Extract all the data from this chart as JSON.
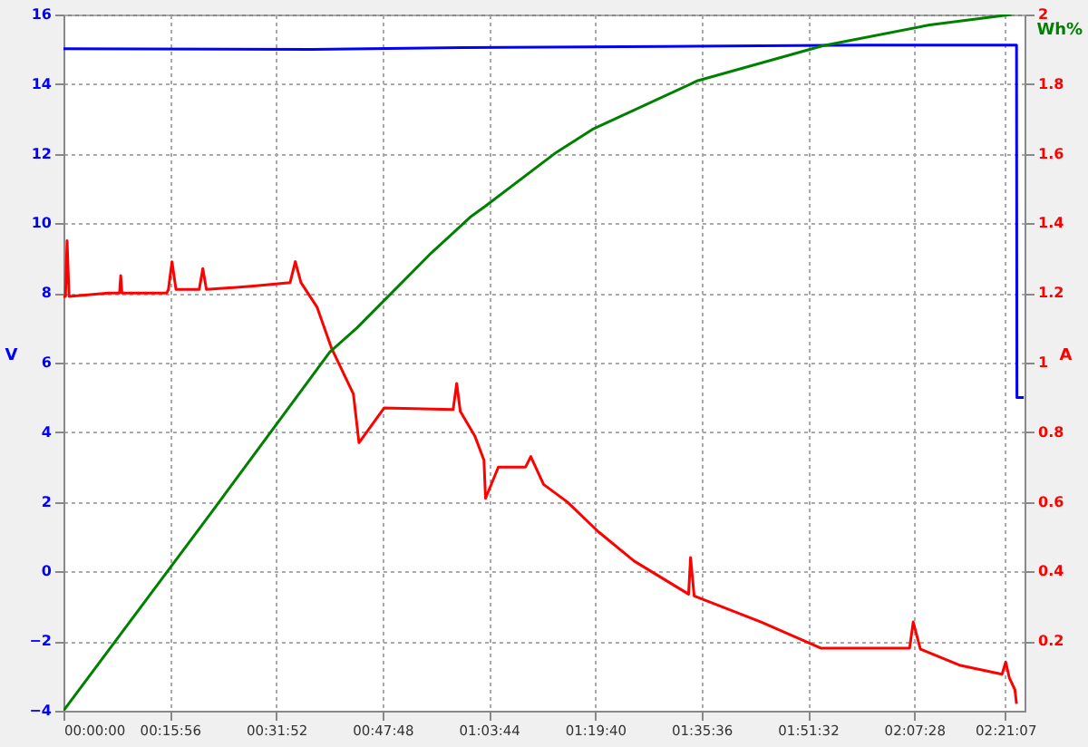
{
  "chart_data": {
    "type": "line",
    "ylabel": "V",
    "y2label": "A",
    "xlim": [
      0,
      2.4
    ],
    "xticks": [
      {
        "value": 0,
        "label": "00:00:00"
      },
      {
        "value": 0.2656,
        "label": "00:15:56"
      },
      {
        "value": 0.5311,
        "label": "00:31:52"
      },
      {
        "value": 0.7967,
        "label": "00:47:48"
      },
      {
        "value": 1.0622,
        "label": "01:03:44"
      },
      {
        "value": 1.3278,
        "label": "01:19:40"
      },
      {
        "value": 1.5933,
        "label": "01:35:36"
      },
      {
        "value": 1.8589,
        "label": "01:51:32"
      },
      {
        "value": 2.1244,
        "label": "02:07:28"
      },
      {
        "value": 2.3519,
        "label": "02:21:07"
      }
    ],
    "ylim": [
      -4,
      16
    ],
    "yticks": [
      -4,
      -2,
      0,
      2,
      4,
      6,
      8,
      10,
      12,
      14,
      16
    ],
    "y2lim": [
      0,
      2
    ],
    "y2ticks": [
      0.2,
      0.4,
      0.6,
      0.8,
      1,
      1.2,
      1.4,
      1.6,
      1.8,
      2
    ],
    "grid": true,
    "series": [
      {
        "color": "#0000ff",
        "x": [
          0,
          0.62,
          1.0,
          1.5,
          2.0,
          2.38,
          2.381,
          2.398
        ],
        "values": [
          15.02,
          15.0,
          15.05,
          15.08,
          15.12,
          15.12,
          5.0,
          5.0
        ]
      },
      {
        "color": "#ff0000",
        "axis": "y2",
        "x": [
          0,
          0.005,
          0.009,
          0.014,
          0.113,
          0.14,
          0.143,
          0.146,
          0.258,
          0.262,
          0.271,
          0.281,
          0.339,
          0.348,
          0.357,
          0.475,
          0.566,
          0.579,
          0.593,
          0.633,
          0.67,
          0.724,
          0.738,
          0.801,
          0.973,
          0.982,
          0.991,
          1.027,
          1.05,
          1.054,
          1.086,
          1.154,
          1.167,
          1.199,
          1.258,
          1.335,
          1.425,
          1.561,
          1.566,
          1.575,
          1.742,
          1.891,
          2.113,
          2.122,
          2.14,
          2.24,
          2.344,
          2.353,
          2.362,
          2.376,
          2.38
        ],
        "values": [
          1.19,
          1.19,
          1.35,
          1.19,
          1.2,
          1.2,
          1.25,
          1.2,
          1.2,
          1.21,
          1.29,
          1.21,
          1.21,
          1.27,
          1.21,
          1.22,
          1.23,
          1.29,
          1.23,
          1.16,
          1.04,
          0.91,
          0.77,
          0.87,
          0.865,
          0.94,
          0.86,
          0.79,
          0.72,
          0.61,
          0.7,
          0.7,
          0.73,
          0.65,
          0.6,
          0.515,
          0.43,
          0.335,
          0.44,
          0.33,
          0.255,
          0.18,
          0.18,
          0.255,
          0.177,
          0.13,
          0.105,
          0.14,
          0.095,
          0.06,
          0.02
        ]
      },
      {
        "name": "Wh%",
        "color": "#008000",
        "axis": "y2",
        "x": [
          0,
          0.376,
          0.665,
          0.733,
          0.914,
          1.018,
          1.054,
          1.226,
          1.321,
          1.584,
          1.896,
          2.163,
          2.367
        ],
        "values": [
          0,
          0.58,
          1.03,
          1.1,
          1.31,
          1.42,
          1.45,
          1.6,
          1.67,
          1.81,
          1.91,
          1.97,
          2.0
        ]
      }
    ]
  }
}
